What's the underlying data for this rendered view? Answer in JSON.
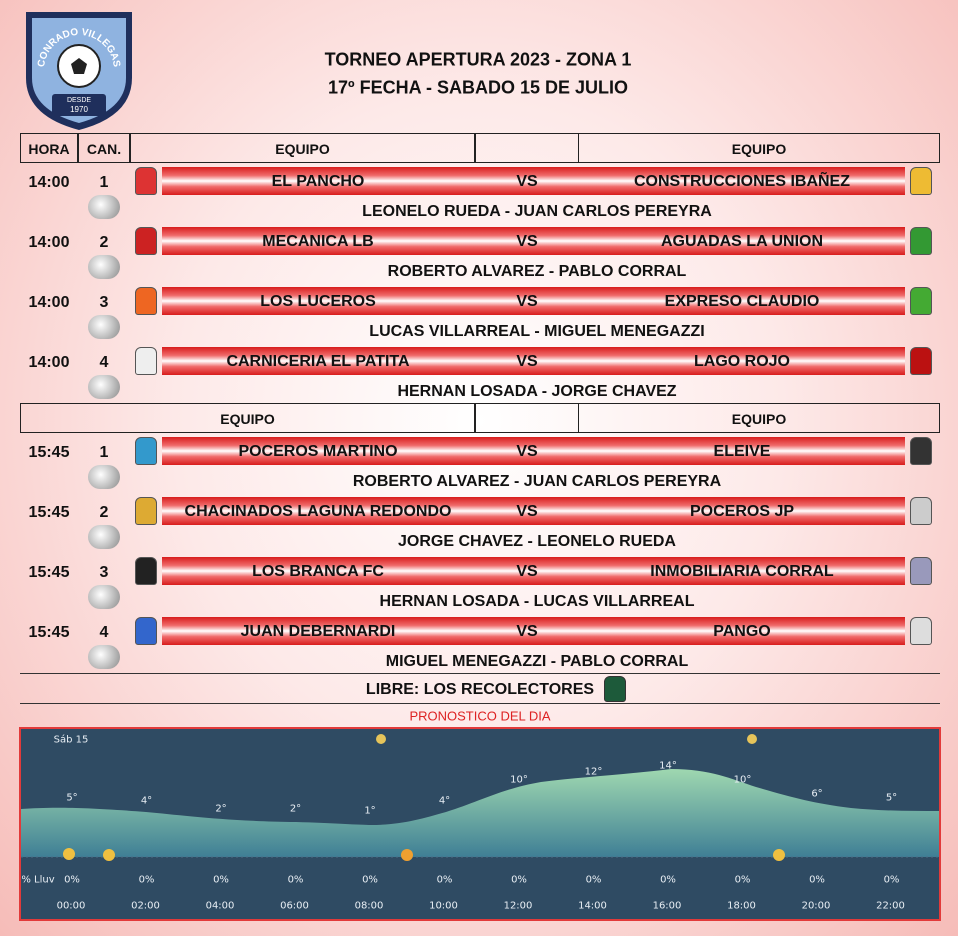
{
  "header": {
    "logo": {
      "name": "CONRADO VILLEGAS",
      "since": "DESDE",
      "year": "1970"
    },
    "title": "TORNEO APERTURA 2023 - ZONA 1",
    "subtitle": "17º FECHA - SABADO 15 DE JULIO"
  },
  "table": {
    "columns": [
      "HORA",
      "CAN.",
      "EQUIPO",
      "EQUIPO"
    ],
    "second_header": [
      "EQUIPO",
      "EQUIPO"
    ],
    "vs": "VS",
    "blocks": [
      {
        "matches": [
          {
            "time": "14:00",
            "field": 1,
            "home": "EL PANCHO",
            "away": "CONSTRUCCIONES IBAÑEZ",
            "referees": "LEONELO RUEDA - JUAN CARLOS PEREYRA"
          },
          {
            "time": "14:00",
            "field": 2,
            "home": "MECANICA LB",
            "away": "AGUADAS LA UNION",
            "referees": "ROBERTO ALVAREZ - PABLO CORRAL"
          },
          {
            "time": "14:00",
            "field": 3,
            "home": "LOS LUCEROS",
            "away": "EXPRESO CLAUDIO",
            "referees": "LUCAS VILLARREAL - MIGUEL MENEGAZZI"
          },
          {
            "time": "14:00",
            "field": 4,
            "home": "CARNICERIA EL PATITA",
            "away": "LAGO ROJO",
            "referees": "HERNAN LOSADA - JORGE CHAVEZ"
          }
        ]
      },
      {
        "matches": [
          {
            "time": "15:45",
            "field": 1,
            "home": "POCEROS MARTINO",
            "away": "ELEIVE",
            "referees": "ROBERTO ALVAREZ - JUAN CARLOS PEREYRA"
          },
          {
            "time": "15:45",
            "field": 2,
            "home": "CHACINADOS LAGUNA REDONDO",
            "away": "POCEROS JP",
            "referees": "JORGE CHAVEZ - LEONELO RUEDA"
          },
          {
            "time": "15:45",
            "field": 3,
            "home": "LOS BRANCA FC",
            "away": "INMOBILIARIA CORRAL",
            "referees": "HERNAN LOSADA - LUCAS VILLARREAL"
          },
          {
            "time": "15:45",
            "field": 4,
            "home": "JUAN DEBERNARDI",
            "away": "PANGO",
            "referees": "MIGUEL MENEGAZZI - PABLO CORRAL"
          }
        ]
      }
    ],
    "libre": "LIBRE: LOS RECOLECTORES"
  },
  "forecast": {
    "title": "PRONOSTICO DEL DIA",
    "day": "Sáb 15",
    "rain_label": "% Lluv",
    "hours": [
      {
        "time": "00:00",
        "temp": "5°",
        "rain": "0%"
      },
      {
        "time": "02:00",
        "temp": "4°",
        "rain": "0%"
      },
      {
        "time": "04:00",
        "temp": "2°",
        "rain": "0%"
      },
      {
        "time": "06:00",
        "temp": "2°",
        "rain": "0%"
      },
      {
        "time": "08:00",
        "temp": "1°",
        "rain": "0%"
      },
      {
        "time": "10:00",
        "temp": "4°",
        "rain": "0%"
      },
      {
        "time": "12:00",
        "temp": "10°",
        "rain": "0%"
      },
      {
        "time": "14:00",
        "temp": "12°",
        "rain": "0%"
      },
      {
        "time": "16:00",
        "temp": "14°",
        "rain": "0%"
      },
      {
        "time": "18:00",
        "temp": "10°",
        "rain": "0%"
      },
      {
        "time": "20:00",
        "temp": "6°",
        "rain": "0%"
      },
      {
        "time": "22:00",
        "temp": "5°",
        "rain": "0%"
      }
    ]
  }
}
